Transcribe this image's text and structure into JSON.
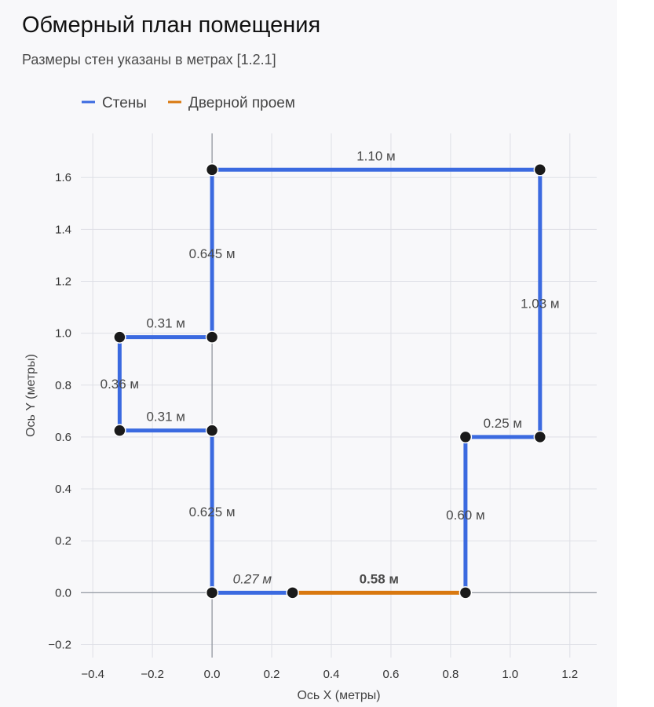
{
  "header": {
    "title": "Обмерный план помещения",
    "subtitle": "Размеры стен указаны в метрах [1.2.1]"
  },
  "colors": {
    "wall": "#3b6ae0",
    "door": "#d9780f",
    "point": "#1a1a1a",
    "background": "#f8f8fa",
    "grid": "#dedfe6"
  },
  "chart_data": {
    "type": "line",
    "xlabel": "Ось X (метры)",
    "ylabel": "Ось Y (метры)",
    "xlim": [
      -0.44,
      1.29
    ],
    "ylim": [
      -0.25,
      1.77
    ],
    "xticks": [
      -0.4,
      -0.2,
      0.0,
      0.2,
      0.4,
      0.6,
      0.8,
      1.0,
      1.2
    ],
    "yticks": [
      -0.2,
      0.0,
      0.2,
      0.4,
      0.6,
      0.8,
      1.0,
      1.2,
      1.4,
      1.6
    ],
    "xtick_labels": [
      "−0.4",
      "−0.2",
      "0.0",
      "0.2",
      "0.4",
      "0.6",
      "0.8",
      "1.0",
      "1.2"
    ],
    "ytick_labels": [
      "−0.2",
      "0.0",
      "0.2",
      "0.4",
      "0.6",
      "0.8",
      "1.0",
      "1.2",
      "1.4",
      "1.6"
    ],
    "grid": true,
    "legend_position": "top-left",
    "legend": [
      {
        "name": "Стены",
        "color": "#3b6ae0"
      },
      {
        "name": "Дверной проем",
        "color": "#d9780f"
      }
    ],
    "segments": [
      {
        "series": "Стены",
        "from": [
          0.0,
          0.0
        ],
        "to": [
          0.27,
          0.0
        ],
        "label": "0.27 м",
        "style": "italic"
      },
      {
        "series": "Дверной проем",
        "from": [
          0.27,
          0.0
        ],
        "to": [
          0.85,
          0.0
        ],
        "label": "0.58 м",
        "style": "bold"
      },
      {
        "series": "Стены",
        "from": [
          0.85,
          0.0
        ],
        "to": [
          0.85,
          0.6
        ],
        "label": "0.60 м",
        "style": "normal"
      },
      {
        "series": "Стены",
        "from": [
          0.85,
          0.6
        ],
        "to": [
          1.1,
          0.6
        ],
        "label": "0.25 м",
        "style": "normal"
      },
      {
        "series": "Стены",
        "from": [
          1.1,
          0.6
        ],
        "to": [
          1.1,
          1.63
        ],
        "label": "1.03 м",
        "style": "normal"
      },
      {
        "series": "Стены",
        "from": [
          1.1,
          1.63
        ],
        "to": [
          0.0,
          1.63
        ],
        "label": "1.10 м",
        "style": "normal"
      },
      {
        "series": "Стены",
        "from": [
          0.0,
          1.63
        ],
        "to": [
          0.0,
          0.985
        ],
        "label": "0.645 м",
        "style": "normal"
      },
      {
        "series": "Стены",
        "from": [
          0.0,
          0.985
        ],
        "to": [
          -0.31,
          0.985
        ],
        "label": "0.31 м",
        "style": "normal"
      },
      {
        "series": "Стены",
        "from": [
          -0.31,
          0.985
        ],
        "to": [
          -0.31,
          0.625
        ],
        "label": "0.36 м",
        "style": "normal"
      },
      {
        "series": "Стены",
        "from": [
          -0.31,
          0.625
        ],
        "to": [
          0.0,
          0.625
        ],
        "label": "0.31 м",
        "style": "normal"
      },
      {
        "series": "Стены",
        "from": [
          0.0,
          0.625
        ],
        "to": [
          0.0,
          0.0
        ],
        "label": "0.625 м",
        "style": "normal"
      }
    ],
    "points": [
      [
        0.0,
        0.0
      ],
      [
        0.27,
        0.0
      ],
      [
        0.85,
        0.0
      ],
      [
        0.85,
        0.6
      ],
      [
        1.1,
        0.6
      ],
      [
        1.1,
        1.63
      ],
      [
        0.0,
        1.63
      ],
      [
        0.0,
        0.985
      ],
      [
        -0.31,
        0.985
      ],
      [
        -0.31,
        0.625
      ],
      [
        0.0,
        0.625
      ]
    ]
  }
}
